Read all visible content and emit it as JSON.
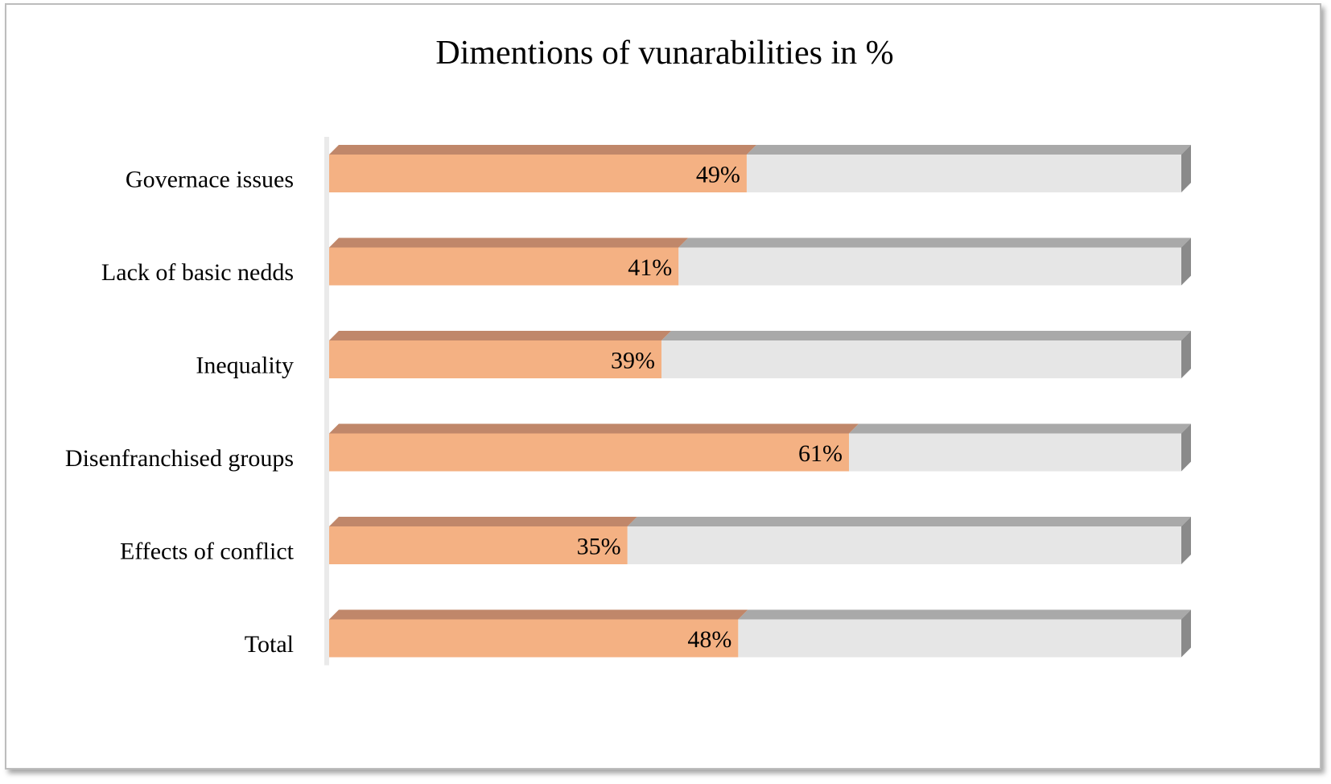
{
  "chart_data": {
    "type": "bar",
    "orientation": "horizontal",
    "stacked": "100%",
    "title": "Dimentions of vunarabilities in %",
    "categories": [
      "Governace issues",
      "Lack of basic nedds",
      "Inequality",
      "Disenfranchised groups",
      "Effects of conflict",
      "Total"
    ],
    "values": [
      49,
      41,
      39,
      61,
      35,
      48
    ],
    "labels": [
      "49%",
      "41%",
      "39%",
      "61%",
      "35%",
      "48%"
    ],
    "xlim": [
      0,
      100
    ],
    "grid": false,
    "legend": "none",
    "colors": {
      "bar": "#f4b183",
      "bar_top": "#c0876a",
      "remainder": "#e6e6e6",
      "remainder_top": "#a9a9a9",
      "remainder_side": "#8a8a8a"
    }
  }
}
